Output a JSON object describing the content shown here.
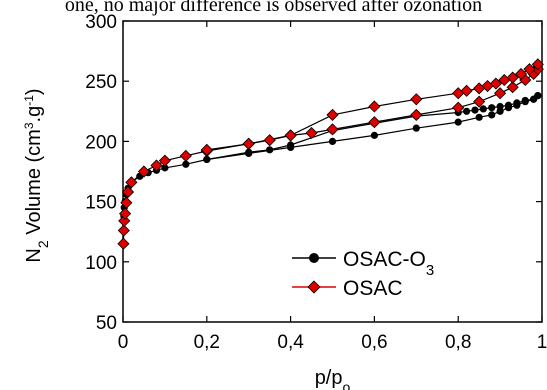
{
  "header_text": "one, no major difference is observed after ozonation",
  "chart_data": {
    "type": "line",
    "xlabel_base": "p/p",
    "xlabel_sub": "o",
    "ylabel_base": "N",
    "ylabel_sub": "2",
    "ylabel_mid": " Volume (cm",
    "ylabel_sup1": "3",
    "ylabel_dot": ".g",
    "ylabel_sup2": "-1",
    "ylabel_end": ")",
    "xlim": [
      0,
      1
    ],
    "ylim": [
      50,
      300
    ],
    "xticks": [
      0,
      0.2,
      0.4,
      0.6,
      0.8,
      1
    ],
    "xtick_labels": [
      "0",
      "0,2",
      "0,4",
      "0,6",
      "0,8",
      "1"
    ],
    "yticks": [
      50,
      100,
      150,
      200,
      250,
      300
    ],
    "ytick_labels": [
      "50",
      "100",
      "150",
      "200",
      "250",
      "300"
    ],
    "legend_position": "lower-right",
    "series": [
      {
        "name_base": "OSAC-O",
        "name_sub": "3",
        "color": "#000000",
        "marker": "circle",
        "adsorption": {
          "x": [
            0.001,
            0.002,
            0.003,
            0.005,
            0.008,
            0.012,
            0.02,
            0.04,
            0.06,
            0.08,
            0.1,
            0.15,
            0.2,
            0.3,
            0.4,
            0.5,
            0.6,
            0.7,
            0.8,
            0.85,
            0.88,
            0.9,
            0.92,
            0.94,
            0.96,
            0.98,
            0.99
          ],
          "y": [
            126,
            138,
            145,
            150,
            156,
            161,
            166,
            171,
            174,
            176,
            178,
            181,
            185,
            190,
            195,
            200,
            205,
            211,
            216,
            220,
            222,
            225,
            228,
            230,
            233,
            235,
            238
          ]
        },
        "desorption": {
          "x": [
            0.99,
            0.98,
            0.96,
            0.94,
            0.92,
            0.9,
            0.88,
            0.86,
            0.84,
            0.82,
            0.8,
            0.7,
            0.6,
            0.5,
            0.4,
            0.35,
            0.3,
            0.2
          ],
          "y": [
            238,
            235,
            234,
            232,
            230,
            229,
            228,
            227,
            226,
            225,
            224,
            221,
            215,
            209,
            197,
            193,
            191,
            185
          ]
        }
      },
      {
        "name": "OSAC",
        "color": "#dd0000",
        "marker": "diamond",
        "adsorption": {
          "x": [
            0.001,
            0.002,
            0.003,
            0.005,
            0.008,
            0.012,
            0.02,
            0.05,
            0.08,
            0.1,
            0.15,
            0.2,
            0.3,
            0.35,
            0.4,
            0.45,
            0.5,
            0.6,
            0.7,
            0.8,
            0.85,
            0.9,
            0.93,
            0.96,
            0.98,
            0.99
          ],
          "y": [
            115,
            126,
            134,
            140,
            149,
            158,
            166,
            175,
            180,
            184,
            188,
            192,
            198,
            201,
            205,
            207,
            210,
            216,
            222,
            228,
            233,
            240,
            245,
            251,
            256,
            260
          ]
        },
        "desorption": {
          "x": [
            0.99,
            0.97,
            0.95,
            0.93,
            0.91,
            0.89,
            0.87,
            0.85,
            0.82,
            0.8,
            0.7,
            0.6,
            0.5,
            0.4,
            0.3,
            0.2
          ],
          "y": [
            264,
            260,
            256,
            253,
            251,
            248,
            246,
            244,
            242,
            240,
            235,
            229,
            222,
            205,
            198,
            193
          ]
        }
      }
    ]
  }
}
